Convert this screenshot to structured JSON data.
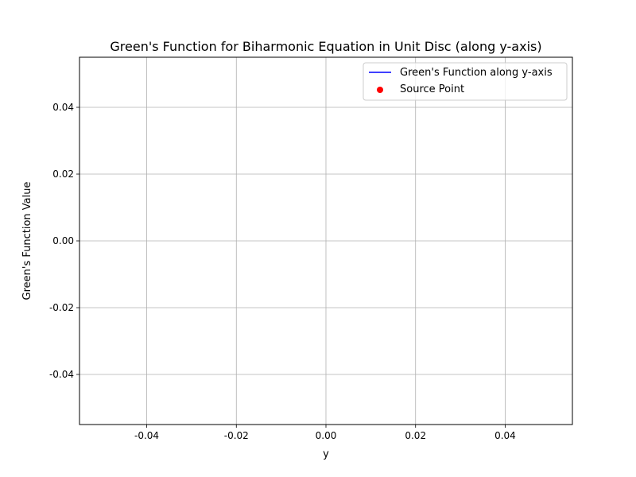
{
  "chart_data": {
    "type": "line",
    "title": "Green's Function for Biharmonic Equation in Unit Disc (along y-axis)",
    "xlabel": "y",
    "ylabel": "Green's Function Value",
    "xlim": [
      -0.055,
      0.055
    ],
    "ylim": [
      -0.055,
      0.055
    ],
    "x_ticks": [
      "-0.04",
      "-0.02",
      "0.00",
      "0.02",
      "0.04"
    ],
    "x_tick_values": [
      -0.04,
      -0.02,
      0.0,
      0.02,
      0.04
    ],
    "y_ticks": [
      "-0.04",
      "-0.02",
      "0.00",
      "0.02",
      "0.04"
    ],
    "y_tick_values": [
      -0.04,
      -0.02,
      0.0,
      0.02,
      0.04
    ],
    "grid": true,
    "legend_position": "top-right",
    "series": [
      {
        "name": "Green's Function along y-axis",
        "kind": "line",
        "color": "#0000ff",
        "x": [],
        "y": []
      },
      {
        "name": "Source Point",
        "kind": "scatter",
        "color": "#ff0000",
        "x": [],
        "y": []
      }
    ]
  }
}
